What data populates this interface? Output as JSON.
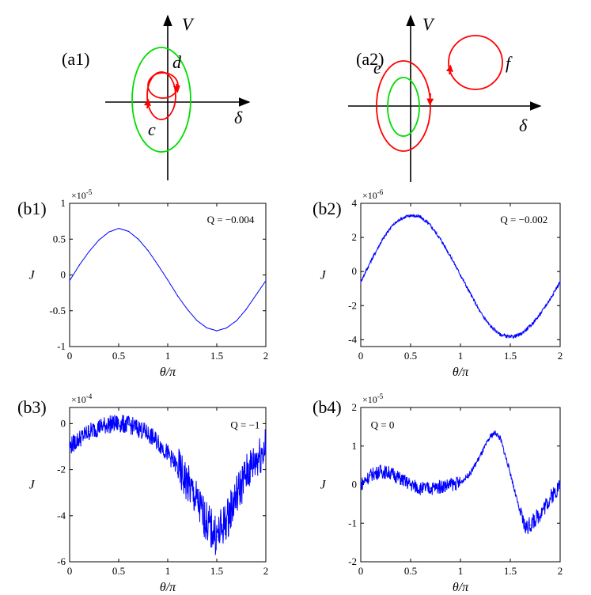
{
  "colors": {
    "trace": "#0000ff",
    "orbit": "#ff0000",
    "separatrix": "#00dd00",
    "axis": "#000000"
  },
  "schematics": [
    {
      "panel_label": "(a1)",
      "axis_v_label": "V",
      "axis_delta_label": "δ",
      "orbit_labels": [
        "d",
        "c"
      ]
    },
    {
      "panel_label": "(a2)",
      "axis_v_label": "V",
      "axis_delta_label": "δ",
      "orbit_labels": [
        "e",
        "f"
      ]
    }
  ],
  "chart_data": [
    {
      "type": "line",
      "panel_label": "(b1)",
      "xlabel": "θ/π",
      "ylabel": "J",
      "sci_base": "×10",
      "sci_exponent": "-5",
      "annotation": "Q = −0.004",
      "xlim": [
        0,
        2
      ],
      "ylim": [
        -1,
        1
      ],
      "xticks": [
        "0",
        "0.5",
        "1",
        "1.5",
        "2"
      ],
      "yticks": [
        "1",
        "0.5",
        "0",
        "-0.5",
        "-1"
      ],
      "grid": false,
      "series": [
        {
          "x": [
            0,
            0.1,
            0.2,
            0.3,
            0.4,
            0.5,
            0.6,
            0.7,
            0.8,
            0.9,
            1.0,
            1.1,
            1.2,
            1.3,
            1.4,
            1.5,
            1.6,
            1.7,
            1.8,
            1.9,
            2.0
          ],
          "y": [
            -0.08,
            0.14,
            0.33,
            0.49,
            0.6,
            0.65,
            0.61,
            0.5,
            0.34,
            0.14,
            -0.07,
            -0.29,
            -0.48,
            -0.64,
            -0.74,
            -0.78,
            -0.74,
            -0.64,
            -0.48,
            -0.28,
            -0.08
          ]
        }
      ]
    },
    {
      "type": "line",
      "panel_label": "(b2)",
      "xlabel": "θ/π",
      "ylabel": "J",
      "sci_base": "×10",
      "sci_exponent": "-6",
      "annotation": "Q = −0.002",
      "xlim": [
        0,
        2
      ],
      "ylim": [
        -4.4,
        4
      ],
      "xticks": [
        "0",
        "0.5",
        "1",
        "1.5",
        "2"
      ],
      "yticks": [
        "4",
        "2",
        "0",
        "-2",
        "-4"
      ],
      "grid": false,
      "series": [
        {
          "x": [
            0,
            0.1,
            0.2,
            0.3,
            0.4,
            0.5,
            0.6,
            0.7,
            0.8,
            0.9,
            1.0,
            1.1,
            1.2,
            1.3,
            1.4,
            1.5,
            1.6,
            1.7,
            1.8,
            1.9,
            2.0
          ],
          "y": [
            -0.6,
            0.6,
            1.7,
            2.6,
            3.1,
            3.3,
            3.2,
            2.7,
            1.9,
            0.9,
            -0.2,
            -1.3,
            -2.4,
            -3.2,
            -3.7,
            -3.85,
            -3.7,
            -3.2,
            -2.5,
            -1.6,
            -0.6
          ]
        }
      ]
    },
    {
      "type": "line",
      "panel_label": "(b3)",
      "xlabel": "θ/π",
      "ylabel": "J",
      "sci_base": "×10",
      "sci_exponent": "-4",
      "annotation": "Q = −1",
      "xlim": [
        0,
        2
      ],
      "ylim": [
        -6,
        0.7
      ],
      "xticks": [
        "0",
        "0.5",
        "1",
        "1.5",
        "2"
      ],
      "yticks": [
        "0",
        "-2",
        "-4",
        "-6"
      ],
      "grid": false,
      "series": [
        {
          "x": [
            0,
            0.1,
            0.2,
            0.3,
            0.4,
            0.5,
            0.6,
            0.7,
            0.8,
            0.9,
            1.0,
            1.1,
            1.2,
            1.3,
            1.4,
            1.5,
            1.6,
            1.7,
            1.8,
            1.9,
            2.0
          ],
          "y": [
            -1.0,
            -0.65,
            -0.35,
            -0.15,
            -0.03,
            0.0,
            -0.05,
            -0.2,
            -0.45,
            -0.8,
            -1.3,
            -1.9,
            -2.6,
            -3.4,
            -4.3,
            -4.9,
            -4.2,
            -3.1,
            -2.2,
            -1.55,
            -1.0
          ]
        }
      ]
    },
    {
      "type": "line",
      "panel_label": "(b4)",
      "xlabel": "θ/π",
      "ylabel": "J",
      "sci_base": "×10",
      "sci_exponent": "-5",
      "annotation": "Q = 0",
      "xlim": [
        0,
        2
      ],
      "ylim": [
        -2,
        2
      ],
      "xticks": [
        "0",
        "0.5",
        "1",
        "1.5",
        "2"
      ],
      "yticks": [
        "2",
        "1",
        "0",
        "-1",
        "-2"
      ],
      "grid": false,
      "series": [
        {
          "x": [
            0,
            0.1,
            0.2,
            0.3,
            0.4,
            0.5,
            0.6,
            0.7,
            0.8,
            0.9,
            1.0,
            1.1,
            1.2,
            1.3,
            1.35,
            1.4,
            1.5,
            1.6,
            1.65,
            1.7,
            1.8,
            1.9,
            2.0
          ],
          "y": [
            0.0,
            0.25,
            0.35,
            0.3,
            0.15,
            0.0,
            -0.1,
            -0.1,
            -0.05,
            0.0,
            0.05,
            0.3,
            0.75,
            1.25,
            1.35,
            1.2,
            0.3,
            -0.75,
            -1.1,
            -1.05,
            -0.75,
            -0.35,
            0.0
          ]
        }
      ]
    }
  ]
}
